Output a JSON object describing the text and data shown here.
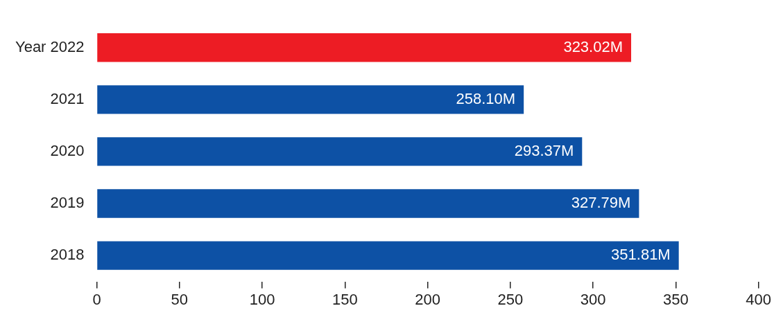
{
  "chart_data": {
    "type": "bar",
    "orientation": "horizontal",
    "categories": [
      "Year 2022",
      "2021",
      "2020",
      "2019",
      "2018"
    ],
    "values": [
      323.02,
      258.1,
      293.37,
      327.79,
      351.81
    ],
    "colors": [
      "#ed1c24",
      "#0d51a5",
      "#0d51a5",
      "#0d51a5",
      "#0d51a5"
    ],
    "value_labels": [
      "323.02M",
      "258.10M",
      "293.37M",
      "327.79M",
      "351.81M"
    ],
    "xlim": [
      0,
      400
    ],
    "xticks": [
      0,
      50,
      100,
      150,
      200,
      250,
      300,
      350,
      400
    ],
    "grid": false,
    "legend": false
  }
}
